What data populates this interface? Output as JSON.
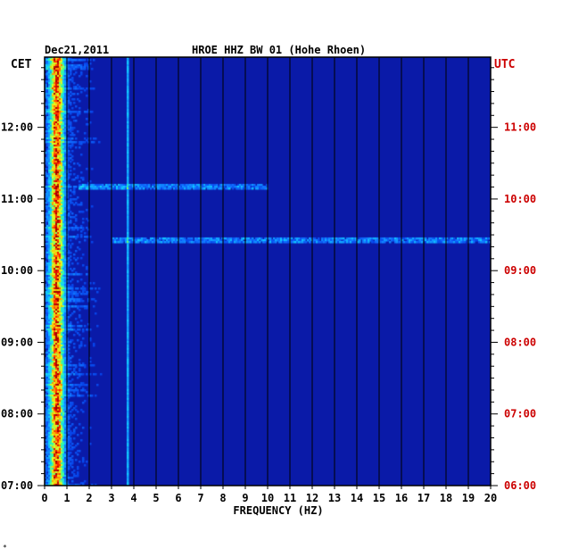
{
  "header": {
    "date": "Dec21,2011",
    "station": "HROE HHZ BW 01 (Hohe Rhoen)"
  },
  "left_tz": "CET",
  "right_tz": "UTC",
  "footer_mark": "*",
  "chart_data": {
    "type": "heatmap",
    "title": "HROE HHZ BW 01 (Hohe Rhoen)",
    "date": "Dec21,2011",
    "xlabel": "FREQUENCY (HZ)",
    "xlim": [
      0,
      20
    ],
    "x_ticks": [
      0,
      1,
      2,
      3,
      4,
      5,
      6,
      7,
      8,
      9,
      10,
      11,
      12,
      13,
      14,
      15,
      16,
      17,
      18,
      19,
      20
    ],
    "left_axis": {
      "label": "CET",
      "ticks": [
        "12:00",
        "11:00",
        "10:00",
        "09:00",
        "08:00",
        "07:00"
      ],
      "tick_hours": [
        12,
        11,
        10,
        9,
        8,
        7
      ]
    },
    "right_axis": {
      "label": "UTC",
      "ticks": [
        "11:00",
        "10:00",
        "09:00",
        "08:00",
        "07:00",
        "06:00"
      ],
      "tick_hours": [
        11,
        10,
        9,
        8,
        7,
        6
      ]
    },
    "time_range_cet": [
      7.0,
      12.98
    ],
    "colormap": [
      "#00008c",
      "#0020d8",
      "#1070ff",
      "#10d0ff",
      "#40ff90",
      "#e0ff20",
      "#ffb000",
      "#ff2000",
      "#a00000"
    ],
    "colors": {
      "background": "#0a1aa8",
      "grid": "#000000",
      "left_tick_text": "#000000",
      "right_tick_text": "#cc0000"
    },
    "noted_features": [
      {
        "description": "strong low-frequency microseism band",
        "freq_hz": [
          0.2,
          1.0
        ]
      },
      {
        "description": "persistent narrow line",
        "freq_hz": 3.7
      },
      {
        "description": "broadband event",
        "time_cet": "11:10",
        "freq_hz": [
          1.5,
          10
        ]
      },
      {
        "description": "broadband event",
        "time_cet": "10:25",
        "freq_hz": [
          3,
          20
        ]
      }
    ]
  }
}
